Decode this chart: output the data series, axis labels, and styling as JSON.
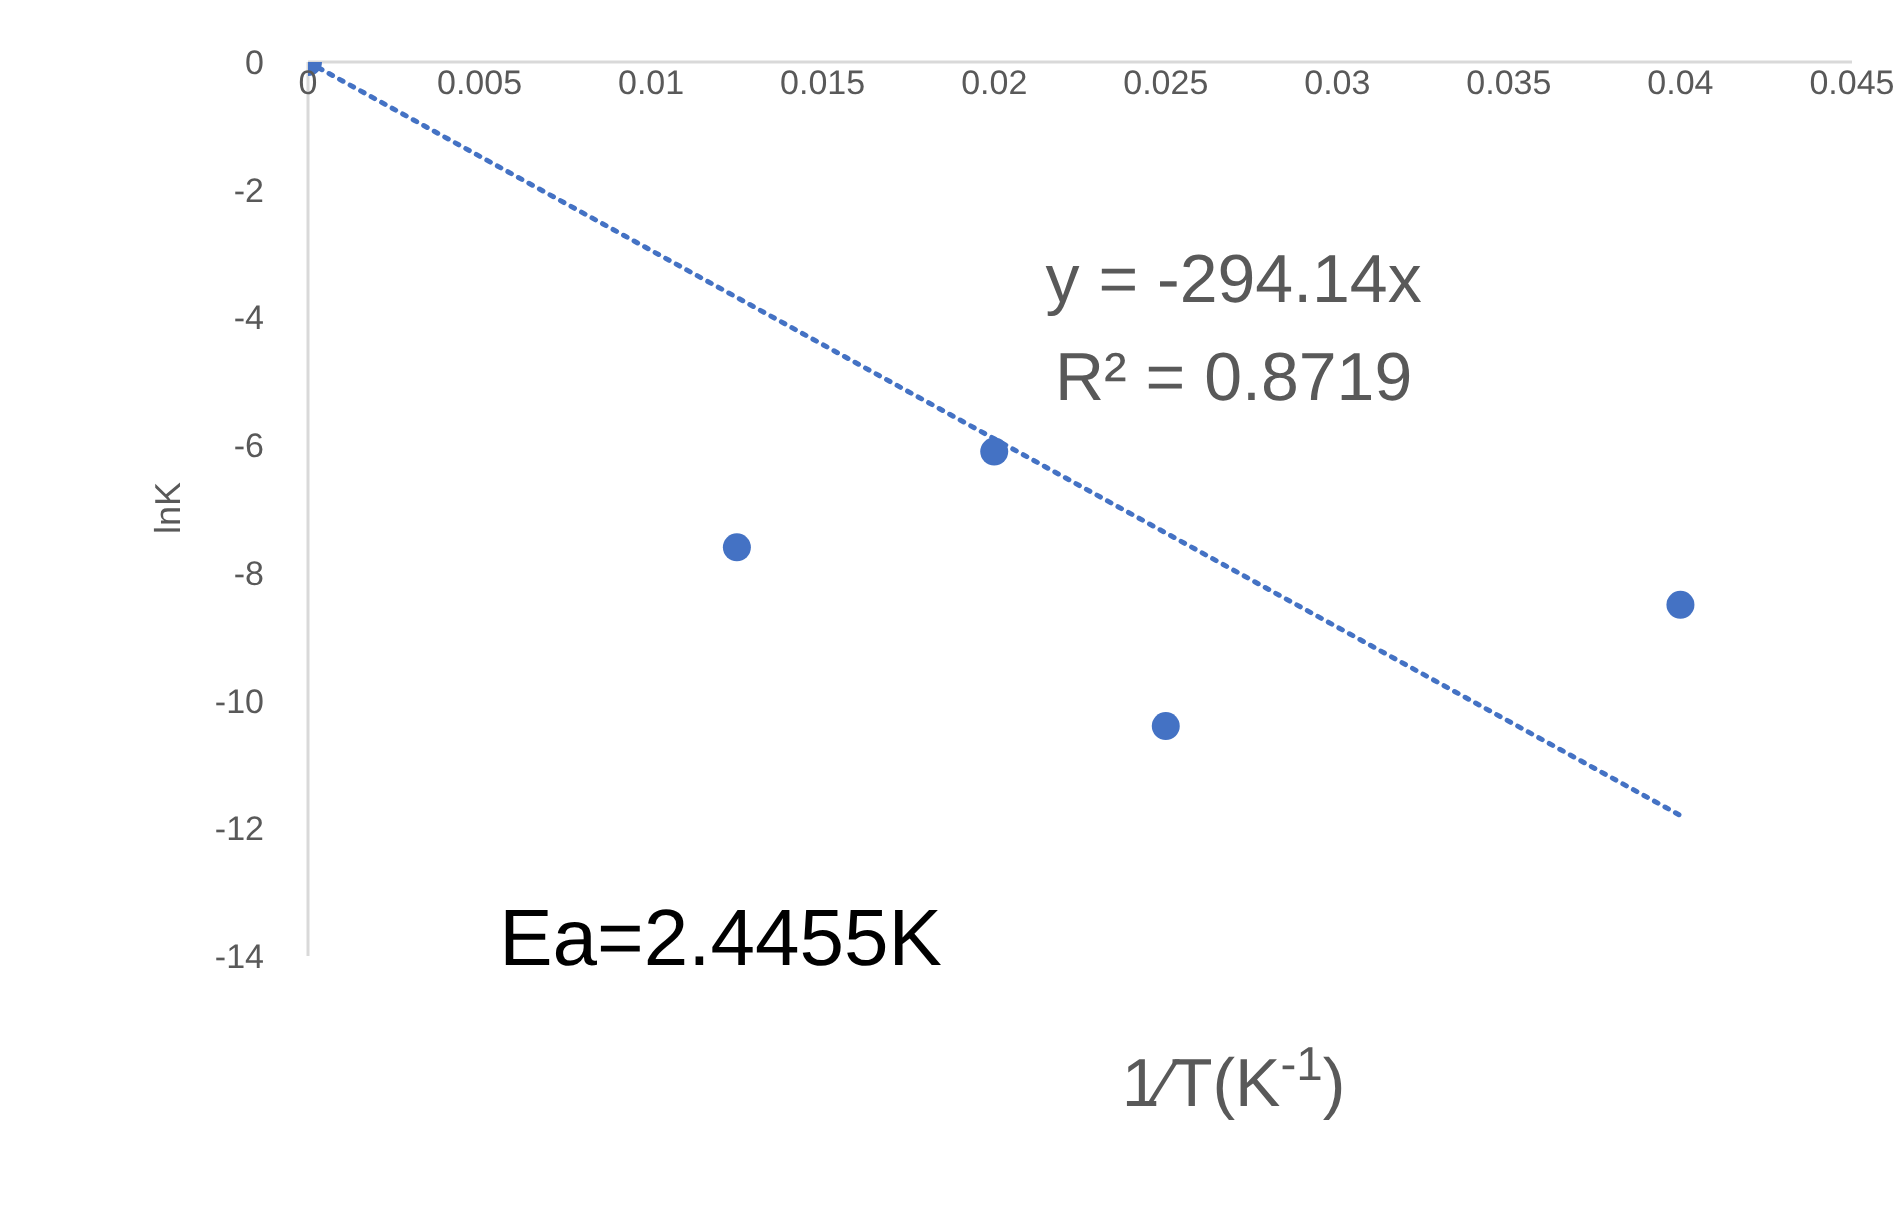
{
  "chart_data": {
    "type": "scatter",
    "xlabel": "1⁄T(K$^{-1}$)",
    "ylabel": "lnK",
    "x": [
      0,
      0.0125,
      0.02,
      0.025,
      0.04
    ],
    "series": [
      {
        "color": "#4472c4",
        "values": [
          0,
          -7.6,
          -6.1,
          -10.4,
          -8.5
        ]
      },
      {
        "type": "line",
        "color": "#4472c4",
        "line_style": "dotted",
        "marker": "none",
        "x": [
          0,
          0.04
        ],
        "values": [
          0,
          -11.8
        ]
      }
    ],
    "xlim": [
      0,
      0.045
    ],
    "xticks": [
      0,
      0.005,
      0.01,
      0.015,
      0.02,
      0.025,
      0.03,
      0.035,
      0.04,
      0.045
    ],
    "ylim": [
      -14,
      0
    ],
    "yticks": [
      0,
      -2,
      -4,
      -6,
      -8,
      -10,
      -12,
      -14
    ],
    "grid": false,
    "legend": false,
    "annotations": [
      "y = -294.14x",
      "R² = 0.8719",
      "Ea=2.4455K"
    ]
  }
}
